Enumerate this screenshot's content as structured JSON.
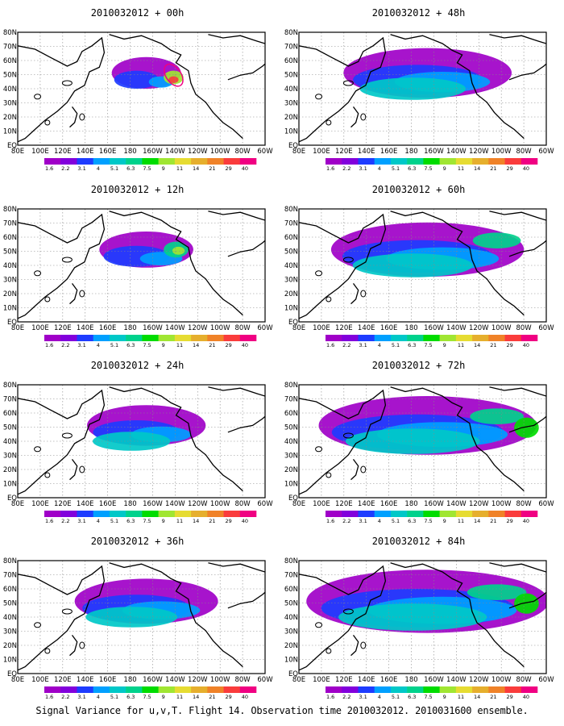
{
  "figure": {
    "caption": "Signal Variance for u,v,T. Flight 14. Observation time 2010032012. 2010031600 ensemble."
  },
  "colorbar": {
    "labels": [
      "1.6",
      "2.2",
      "3.1",
      "4",
      "5.1",
      "6.3",
      "7.5",
      "9",
      "11",
      "14",
      "21",
      "29",
      "40"
    ],
    "colors": [
      "#a000c8",
      "#8200dc",
      "#1e3cff",
      "#00a0ff",
      "#00c8c8",
      "#00d28c",
      "#00dc00",
      "#a0e632",
      "#e6dc32",
      "#e6af2d",
      "#f08228",
      "#fa3c3c",
      "#f00082"
    ]
  },
  "axes": {
    "lon_labels": [
      "80E",
      "100E",
      "120E",
      "140E",
      "160E",
      "180",
      "160W",
      "140W",
      "120W",
      "100W",
      "80W",
      "60W"
    ],
    "lat_labels": [
      "80N",
      "70N",
      "60N",
      "50N",
      "40N",
      "30N",
      "20N",
      "10N",
      "EQ"
    ]
  },
  "panels": [
    {
      "title": "2010032012 + 00h",
      "lead_hours": 0
    },
    {
      "title": "2010032012 + 48h",
      "lead_hours": 48
    },
    {
      "title": "2010032012 + 12h",
      "lead_hours": 12
    },
    {
      "title": "2010032012 + 60h",
      "lead_hours": 60
    },
    {
      "title": "2010032012 + 24h",
      "lead_hours": 24
    },
    {
      "title": "2010032012 + 72h",
      "lead_hours": 72
    },
    {
      "title": "2010032012 + 36h",
      "lead_hours": 36
    },
    {
      "title": "2010032012 + 84h",
      "lead_hours": 84
    }
  ]
}
